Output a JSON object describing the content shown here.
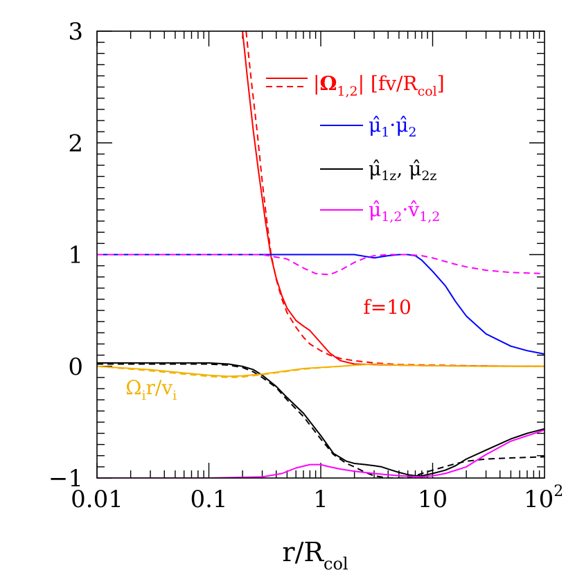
{
  "chart_data": {
    "type": "line",
    "xscale": "log",
    "xlim": [
      0.01,
      100
    ],
    "ylim": [
      -1,
      3
    ],
    "x_ticks": [
      {
        "value": 0.01,
        "label": "0.01"
      },
      {
        "value": 0.1,
        "label": "0.1"
      },
      {
        "value": 1,
        "label": "1"
      },
      {
        "value": 10,
        "label": "10"
      }
    ],
    "x_tick_last": {
      "value": 100,
      "base": "10",
      "exp": "2"
    },
    "y_ticks": [
      {
        "value": 3,
        "label": "3"
      },
      {
        "value": 2,
        "label": "2"
      },
      {
        "value": 1,
        "label": "1"
      },
      {
        "value": 0,
        "label": "0"
      },
      {
        "value": -1,
        "label": "−1"
      }
    ],
    "xlabel": {
      "main": "r/R",
      "sub": "col"
    },
    "annotations": {
      "f": {
        "text": "f=10",
        "color": "#ff0000",
        "x": 2.4,
        "y": 0.47
      },
      "omega": {
        "main1": "Ω",
        "sub1": "i",
        "main2": "r/v",
        "sub2": "i",
        "color": "#f2b200",
        "x": 0.018,
        "y": -0.25
      }
    },
    "legend": {
      "omega_mag": {
        "prefix": "|",
        "bold": "Ω",
        "sub": "1,2",
        "suffix": "|  [fv/R",
        "sub2": "col",
        "end": "]",
        "color": "#ff0000"
      },
      "mu_dot": {
        "t1": "μ̂",
        "s1": "1",
        "t2": "·μ̂",
        "s2": "2",
        "color": "#0000ff"
      },
      "mu_z": {
        "t1": "μ̂",
        "s1": "1z",
        "t2": ",  μ̂",
        "s2": "2z",
        "color": "#000000"
      },
      "mu_v": {
        "t1": "μ̂",
        "s1": "1,2",
        "t2": "·v̂",
        "s2": "1,2",
        "color": "#ff00ff"
      }
    },
    "series": [
      {
        "color": "#ff0000",
        "dash": "solid",
        "x": [
          0.2,
          0.22,
          0.25,
          0.28,
          0.32,
          0.36,
          0.4,
          0.45,
          0.5,
          0.6,
          0.7,
          0.8,
          1.0,
          1.2,
          1.5,
          2,
          3,
          5,
          10,
          30,
          100
        ],
        "y": [
          3.0,
          2.6,
          2.1,
          1.72,
          1.3,
          0.98,
          0.79,
          0.63,
          0.52,
          0.41,
          0.36,
          0.32,
          0.21,
          0.12,
          0.05,
          0.02,
          0.015,
          0.01,
          0.005,
          0.002,
          0.0
        ]
      },
      {
        "color": "#ff0000",
        "dash": "dashed",
        "x": [
          0.215,
          0.24,
          0.27,
          0.3,
          0.33,
          0.36,
          0.4,
          0.45,
          0.5,
          0.6,
          0.7,
          0.8,
          1.0,
          1.2,
          1.5,
          2,
          3,
          5,
          10,
          30,
          100
        ],
        "y": [
          3.0,
          2.55,
          2.1,
          1.65,
          1.3,
          1.0,
          0.78,
          0.6,
          0.48,
          0.35,
          0.26,
          0.2,
          0.14,
          0.1,
          0.07,
          0.05,
          0.03,
          0.015,
          0.01,
          0.003,
          0.0
        ]
      },
      {
        "color": "#0000ff",
        "dash": "solid",
        "x": [
          0.01,
          0.1,
          0.5,
          1,
          2,
          3,
          4,
          5,
          6,
          7,
          8,
          10,
          13,
          16,
          20,
          30,
          50,
          70,
          100
        ],
        "y": [
          1.0,
          1.0,
          1.0,
          1.0,
          1.0,
          0.97,
          0.99,
          1.0,
          1.0,
          0.99,
          0.95,
          0.85,
          0.72,
          0.58,
          0.45,
          0.29,
          0.18,
          0.14,
          0.11
        ]
      },
      {
        "color": "#ff00ff",
        "dash": "dashed",
        "x": [
          0.01,
          0.1,
          0.3,
          0.5,
          0.7,
          0.9,
          1.2,
          1.5,
          2,
          2.5,
          3,
          4,
          6,
          8,
          10,
          15,
          20,
          30,
          50,
          100
        ],
        "y": [
          1.0,
          1.0,
          1.0,
          0.96,
          0.88,
          0.83,
          0.82,
          0.86,
          0.93,
          0.97,
          0.99,
          1.0,
          1.0,
          0.99,
          0.97,
          0.92,
          0.89,
          0.86,
          0.84,
          0.83
        ]
      },
      {
        "color": "#000000",
        "dash": "solid",
        "x": [
          0.01,
          0.05,
          0.1,
          0.15,
          0.2,
          0.25,
          0.3,
          0.4,
          0.5,
          0.7,
          1.0,
          1.3,
          1.7,
          2,
          2.5,
          3,
          3.5,
          4,
          5,
          6,
          7,
          8,
          10,
          13,
          16,
          20,
          30,
          50,
          70,
          100
        ],
        "y": [
          0.03,
          0.03,
          0.03,
          0.02,
          0.0,
          -0.03,
          -0.08,
          -0.18,
          -0.28,
          -0.42,
          -0.62,
          -0.78,
          -0.85,
          -0.87,
          -0.88,
          -0.89,
          -0.9,
          -0.92,
          -0.95,
          -0.97,
          -0.98,
          -0.98,
          -0.96,
          -0.93,
          -0.89,
          -0.83,
          -0.75,
          -0.65,
          -0.6,
          -0.56
        ]
      },
      {
        "color": "#000000",
        "dash": "dashed",
        "x": [
          0.01,
          0.05,
          0.1,
          0.15,
          0.2,
          0.25,
          0.3,
          0.4,
          0.5,
          0.7,
          1.0,
          1.3,
          1.7,
          2,
          2.5,
          3,
          4,
          5,
          6,
          7,
          8,
          10,
          15,
          20,
          30,
          50,
          100
        ],
        "y": [
          0.02,
          0.02,
          0.02,
          0.01,
          -0.01,
          -0.05,
          -0.1,
          -0.19,
          -0.3,
          -0.45,
          -0.65,
          -0.79,
          -0.87,
          -0.9,
          -0.95,
          -0.98,
          -1.0,
          -1.0,
          -1.0,
          -0.98,
          -0.96,
          -0.93,
          -0.88,
          -0.85,
          -0.83,
          -0.82,
          -0.81
        ]
      },
      {
        "color": "#ff00ff",
        "dash": "solid",
        "x": [
          0.01,
          0.1,
          0.3,
          0.45,
          0.6,
          0.8,
          1.0,
          1.2,
          1.5,
          2,
          3,
          5,
          8,
          10,
          13,
          20,
          30,
          50,
          100
        ],
        "y": [
          -1.0,
          -1.0,
          -0.99,
          -0.96,
          -0.91,
          -0.88,
          -0.88,
          -0.9,
          -0.92,
          -0.94,
          -0.96,
          -0.98,
          -0.99,
          -0.98,
          -0.96,
          -0.9,
          -0.79,
          -0.67,
          -0.57
        ]
      },
      {
        "color": "#f2b200",
        "dash": "solid",
        "x": [
          0.01,
          0.03,
          0.06,
          0.1,
          0.15,
          0.2,
          0.3,
          0.5,
          0.7,
          1.0,
          1.5,
          2,
          3,
          5,
          10,
          30,
          100
        ],
        "y": [
          0.0,
          -0.03,
          -0.06,
          -0.08,
          -0.09,
          -0.085,
          -0.07,
          -0.04,
          -0.02,
          -0.01,
          0.0,
          0.01,
          0.02,
          0.01,
          0.005,
          0.0,
          0.0
        ]
      },
      {
        "color": "#f2b200",
        "dash": "dashed",
        "x": [
          0.01,
          0.03,
          0.06,
          0.1,
          0.15,
          0.2,
          0.3,
          0.5,
          0.7,
          1.0,
          1.5,
          2,
          3,
          5,
          10,
          30,
          100
        ],
        "y": [
          0.0,
          -0.04,
          -0.07,
          -0.09,
          -0.1,
          -0.095,
          -0.075,
          -0.045,
          -0.025,
          -0.012,
          0.0,
          0.01,
          0.02,
          0.01,
          0.005,
          0.0,
          0.0
        ]
      }
    ]
  }
}
